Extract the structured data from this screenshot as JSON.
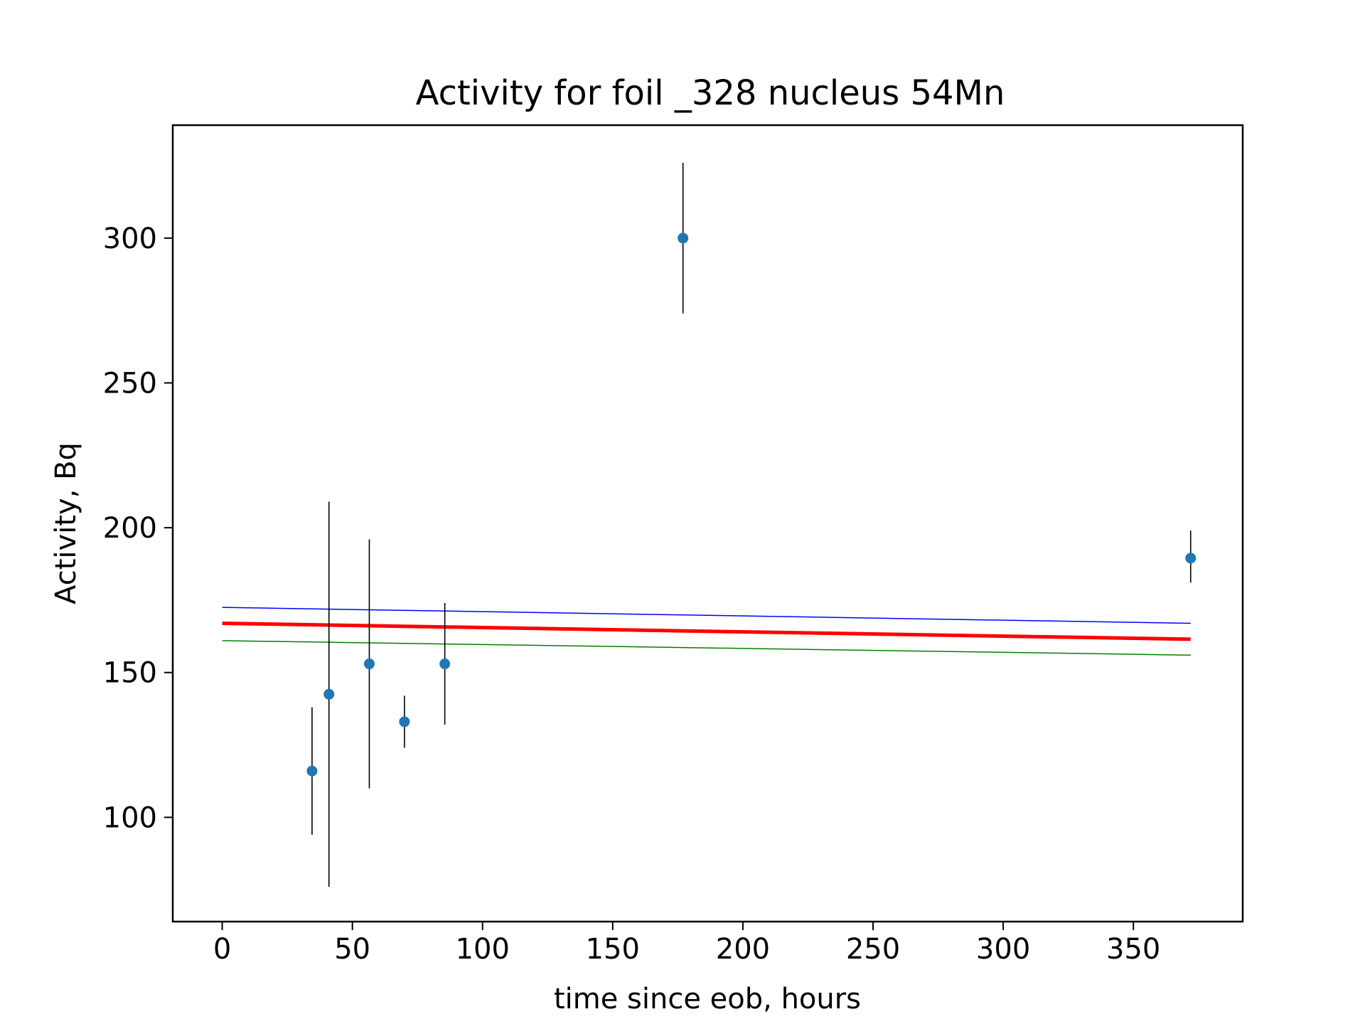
{
  "chart_data": {
    "type": "scatter",
    "title": "Activity for foil _328 nucleus 54Mn",
    "xlabel": "time since eob, hours",
    "ylabel": "Activity, Bq",
    "xlim": [
      -19,
      392
    ],
    "ylim": [
      64,
      339
    ],
    "xticks": [
      0,
      50,
      100,
      150,
      200,
      250,
      300,
      350
    ],
    "yticks": [
      100,
      150,
      200,
      250,
      300
    ],
    "grid": false,
    "points": {
      "color": "#1f77b4",
      "error_color": "#000000",
      "data": [
        {
          "x": 34.5,
          "y": 116,
          "yerr_low": 94,
          "yerr_high": 138
        },
        {
          "x": 41,
          "y": 142.5,
          "yerr_low": 76,
          "yerr_high": 209
        },
        {
          "x": 56.5,
          "y": 153,
          "yerr_low": 110,
          "yerr_high": 196
        },
        {
          "x": 70,
          "y": 133,
          "yerr_low": 124,
          "yerr_high": 142
        },
        {
          "x": 85.5,
          "y": 153,
          "yerr_low": 132,
          "yerr_high": 174
        },
        {
          "x": 177,
          "y": 300,
          "yerr_low": 274,
          "yerr_high": 326
        },
        {
          "x": 372,
          "y": 189.5,
          "yerr_low": 181,
          "yerr_high": 199
        }
      ]
    },
    "lines": [
      {
        "role": "upper",
        "color": "#0000ff",
        "x": [
          0,
          372
        ],
        "y": [
          172.5,
          167
        ]
      },
      {
        "role": "fit",
        "color": "#ff0000",
        "x": [
          0,
          372
        ],
        "y": [
          167,
          161.5
        ]
      },
      {
        "role": "lower",
        "color": "#008000",
        "x": [
          0,
          372
        ],
        "y": [
          161,
          156
        ]
      }
    ]
  }
}
